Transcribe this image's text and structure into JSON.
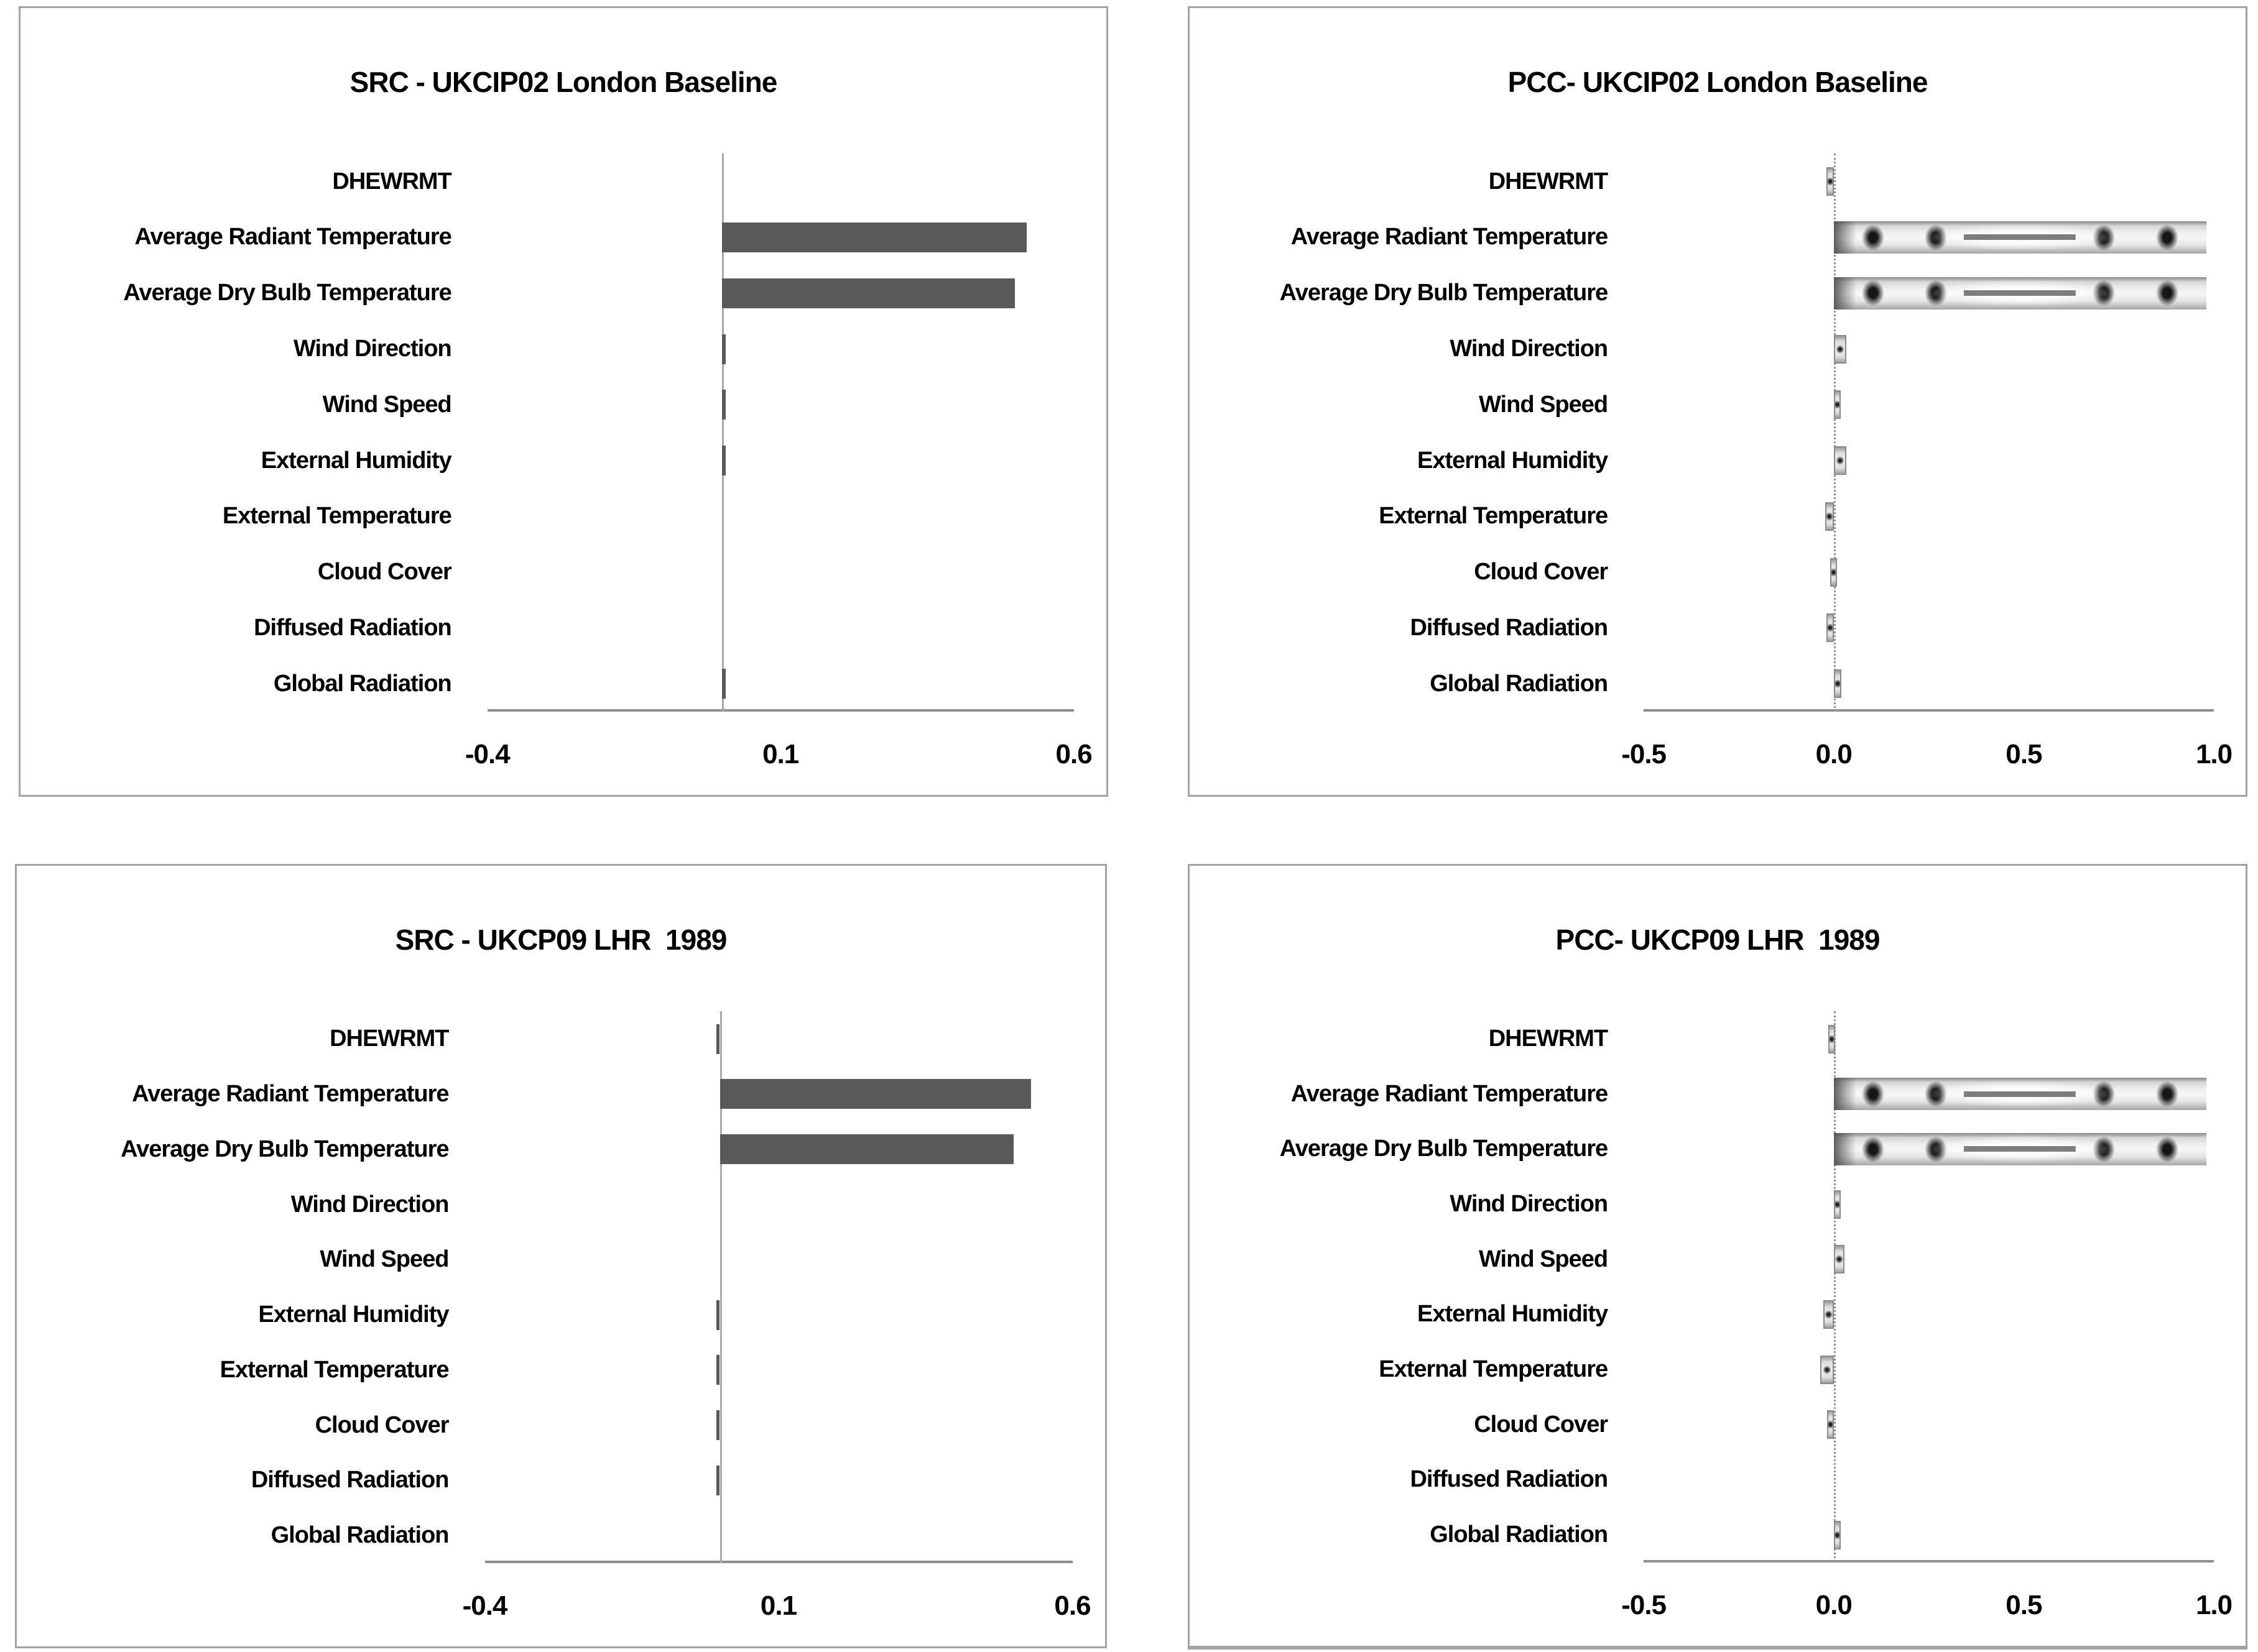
{
  "chart_data": [
    {
      "type": "bar",
      "orientation": "horizontal",
      "title": "SRC - UKCIP02 London Baseline",
      "bar_style": "solid",
      "bar_color": "#595959",
      "categories": [
        "DHEWRMT",
        "Average Radiant Temperature",
        "Average Dry Bulb Temperature",
        "Wind Direction",
        "Wind Speed",
        "External Humidity",
        "External Temperature",
        "Cloud Cover",
        "Diffused Radiation",
        "Global Radiation"
      ],
      "values": [
        0,
        0.52,
        0.5,
        0.006,
        0.006,
        0.006,
        0,
        0,
        0,
        0.006
      ],
      "xlim": [
        -0.4,
        0.6
      ],
      "ticks": [
        {
          "label": "-0.4",
          "value": -0.4
        },
        {
          "label": "0.1",
          "value": 0.1
        },
        {
          "label": "0.6",
          "value": 0.6
        }
      ],
      "grid": false,
      "legend": false
    },
    {
      "type": "bar",
      "orientation": "horizontal",
      "title": "PCC- UKCIP02 London Baseline",
      "bar_style": "textured-metallic-gray",
      "bar_color": "#d9d9d9",
      "categories": [
        "DHEWRMT",
        "Average Radiant Temperature",
        "Average Dry Bulb Temperature",
        "Wind Direction",
        "Wind Speed",
        "External Humidity",
        "External Temperature",
        "Cloud Cover",
        "Diffused Radiation",
        "Global Radiation"
      ],
      "values": [
        -0.02,
        0.98,
        0.98,
        0.033,
        0.015,
        0.033,
        -0.022,
        -0.01,
        -0.02,
        0.02
      ],
      "xlim": [
        -0.5,
        1.0
      ],
      "ticks": [
        {
          "label": "-0.5",
          "value": -0.5
        },
        {
          "label": "0.0",
          "value": 0.0
        },
        {
          "label": "0.5",
          "value": 0.5
        },
        {
          "label": "1.0",
          "value": 1.0
        }
      ],
      "grid": false,
      "legend": false
    },
    {
      "type": "bar",
      "orientation": "horizontal",
      "title": "SRC - UKCP09 LHR  1989",
      "bar_style": "solid",
      "bar_color": "#595959",
      "categories": [
        "DHEWRMT",
        "Average Radiant Temperature",
        "Average Dry Bulb Temperature",
        "Wind Direction",
        "Wind Speed",
        "External Humidity",
        "External Temperature",
        "Cloud Cover",
        "Diffused Radiation",
        "Global Radiation"
      ],
      "values": [
        -0.006,
        0.53,
        0.5,
        0,
        0,
        -0.006,
        -0.006,
        -0.006,
        -0.006,
        0
      ],
      "xlim": [
        -0.4,
        0.6
      ],
      "ticks": [
        {
          "label": "-0.4",
          "value": -0.4
        },
        {
          "label": "0.1",
          "value": 0.1
        },
        {
          "label": "0.6",
          "value": 0.6
        }
      ],
      "grid": false,
      "legend": false
    },
    {
      "type": "bar",
      "orientation": "horizontal",
      "title": "PCC- UKCP09 LHR  1989",
      "bar_style": "textured-metallic-gray",
      "bar_color": "#d9d9d9",
      "categories": [
        "DHEWRMT",
        "Average Radiant Temperature",
        "Average Dry Bulb Temperature",
        "Wind Direction",
        "Wind Speed",
        "External Humidity",
        "External Temperature",
        "Cloud Cover",
        "Diffused Radiation",
        "Global Radiation"
      ],
      "values": [
        -0.015,
        0.98,
        0.98,
        0.016,
        0.028,
        -0.028,
        -0.036,
        -0.018,
        0,
        0.018
      ],
      "xlim": [
        -0.5,
        1.0
      ],
      "ticks": [
        {
          "label": "-0.5",
          "value": -0.5
        },
        {
          "label": "0.0",
          "value": 0.0
        },
        {
          "label": "0.5",
          "value": 0.5
        },
        {
          "label": "1.0",
          "value": 1.0
        }
      ],
      "grid": false,
      "legend": false
    }
  ]
}
